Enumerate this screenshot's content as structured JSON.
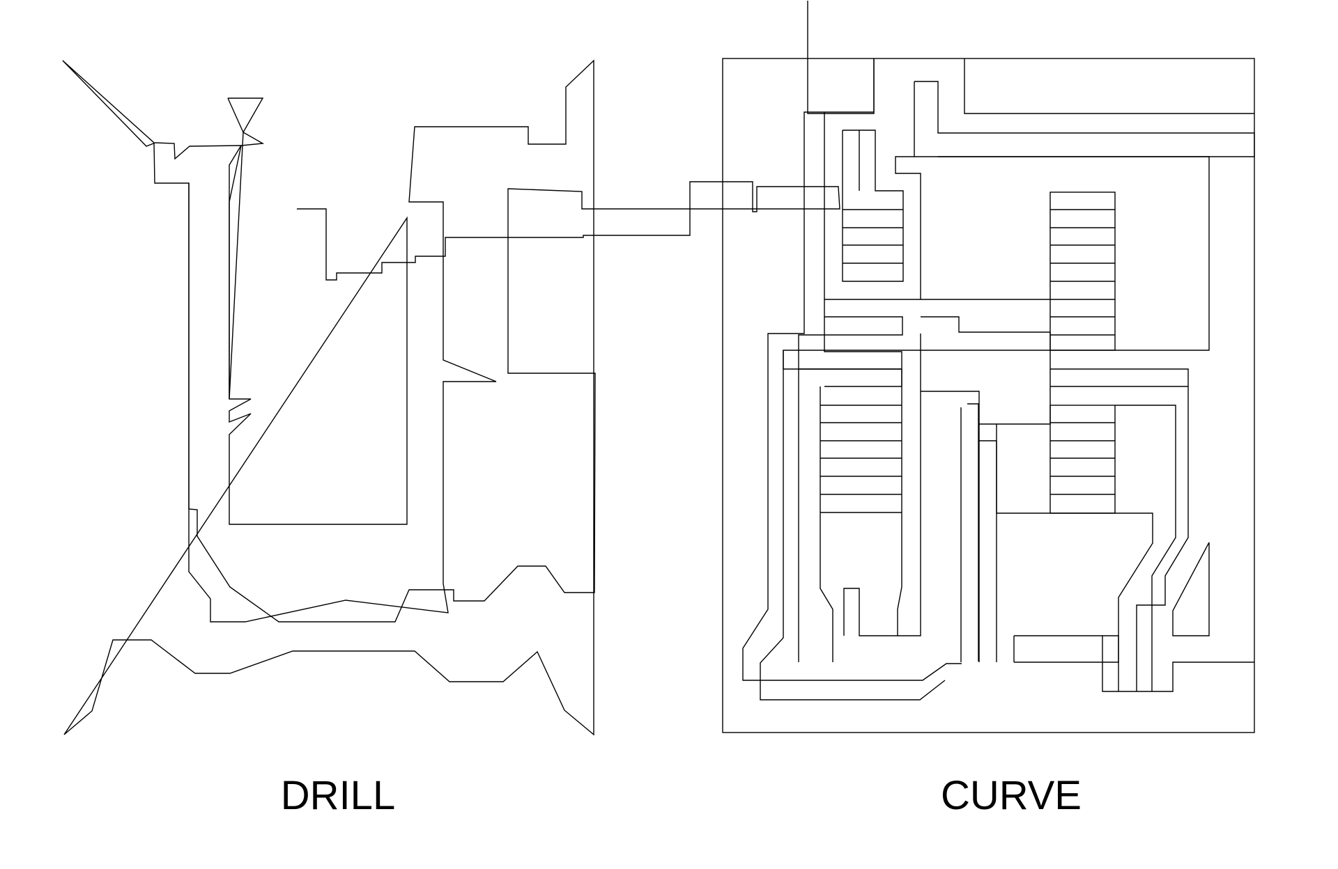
{
  "drill_panel": {
    "label": "DRILL"
  },
  "curve_panel": {
    "label": "CURVE"
  },
  "colors": {
    "background": "#ffffff",
    "stroke": "#000000",
    "text": "#000000"
  }
}
